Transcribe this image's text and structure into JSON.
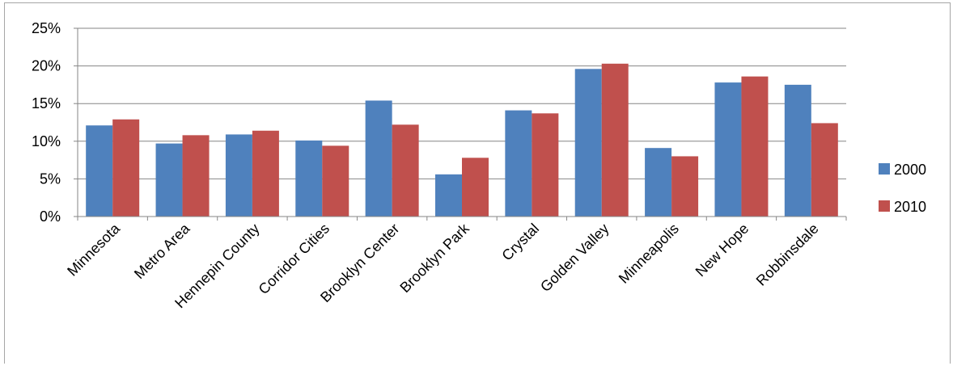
{
  "chart_data": {
    "type": "bar",
    "categories": [
      "Minnesota",
      "Metro Area",
      "Hennepin County",
      "Corridor Cities",
      "Brooklyn Center",
      "Brooklyn Park",
      "Crystal",
      "Golden Valley",
      "Minneapolis",
      "New Hope",
      "Robbinsdale"
    ],
    "series": [
      {
        "name": "2000",
        "color": "#4f81bd",
        "values": [
          12.1,
          9.7,
          10.9,
          10.1,
          15.4,
          5.6,
          14.1,
          19.6,
          9.1,
          17.8,
          17.5
        ]
      },
      {
        "name": "2010",
        "color": "#c0504d",
        "values": [
          12.9,
          10.8,
          11.4,
          9.4,
          12.2,
          7.8,
          13.7,
          20.3,
          8.0,
          18.6,
          12.4
        ]
      }
    ],
    "y_ticks": [
      "0%",
      "5%",
      "10%",
      "15%",
      "20%",
      "25%"
    ],
    "ylim": [
      0,
      25
    ],
    "grid": true,
    "legend_position": "right"
  }
}
